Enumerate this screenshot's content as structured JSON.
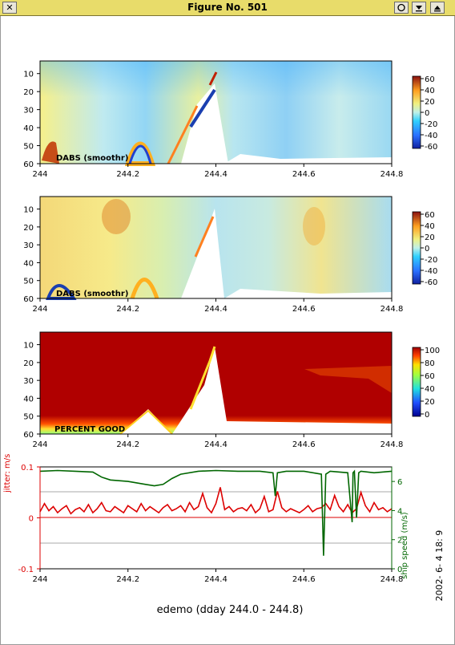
{
  "window": {
    "title": "Figure No. 501",
    "close_glyph": "✕",
    "buttons": [
      "circle-icon",
      "minimize-icon",
      "maximize-icon"
    ]
  },
  "panels": [
    {
      "id": "p1",
      "label": "DABS  (smoothr)",
      "colorbar_ticks": [
        "60",
        "40",
        "20",
        "0",
        "-20",
        "-40",
        "-60"
      ],
      "colorbar": "bwr"
    },
    {
      "id": "p2",
      "label": "DABS  (smoothr)",
      "colorbar_ticks": [
        "60",
        "40",
        "20",
        "0",
        "-20",
        "-40",
        "-60"
      ],
      "colorbar": "bwr"
    },
    {
      "id": "p3",
      "label": "PERCENT GOOD",
      "colorbar_ticks": [
        "100",
        "80",
        "60",
        "40",
        "20",
        "0"
      ],
      "colorbar": "jet"
    }
  ],
  "depth_ticks": [
    "10",
    "20",
    "30",
    "40",
    "50",
    "60"
  ],
  "x_ticks": [
    "244",
    "244.2",
    "244.4",
    "244.6",
    "244.8"
  ],
  "bottom_plot": {
    "left_ylabel": "jitter: m/s",
    "right_ylabel": "ship speed (m/s)",
    "left_ticks": [
      "0.1",
      "0",
      "-0.1"
    ],
    "right_ticks": [
      "6",
      "4",
      "2",
      "0"
    ]
  },
  "footer": {
    "caption": "edemo (dday 244.0 - 244.8)",
    "timestamp": "2002- 6- 4 18: 9"
  },
  "chart_data": [
    {
      "type": "line",
      "title": "",
      "xlabel": "",
      "ylabel": "jitter: m/s",
      "xlim": [
        244.0,
        244.8
      ],
      "ylim": [
        -0.1,
        0.1
      ],
      "series": [
        {
          "name": "",
          "color": "#dd0000",
          "x": [
            244.0,
            244.01,
            244.02,
            244.03,
            244.04,
            244.05,
            244.06,
            244.07,
            244.08,
            244.09,
            244.1,
            244.11,
            244.12,
            244.13,
            244.14,
            244.15,
            244.16,
            244.17,
            244.18,
            244.19,
            244.2,
            244.21,
            244.22,
            244.23,
            244.24,
            244.25,
            244.26,
            244.27,
            244.28,
            244.29,
            244.3,
            244.31,
            244.32,
            244.33,
            244.34,
            244.35,
            244.36,
            244.37,
            244.38,
            244.39,
            244.4,
            244.41,
            244.42,
            244.43,
            244.44,
            244.45,
            244.46,
            244.47,
            244.48,
            244.49,
            244.5,
            244.51,
            244.52,
            244.53,
            244.54,
            244.55,
            244.56,
            244.57,
            244.58,
            244.59,
            244.6,
            244.61,
            244.62,
            244.63,
            244.64,
            244.65,
            244.66,
            244.67,
            244.68,
            244.69,
            244.7,
            244.71,
            244.72,
            244.73,
            244.74,
            244.75,
            244.76,
            244.77,
            244.78,
            244.79,
            244.8
          ],
          "y": [
            0.012,
            0.028,
            0.014,
            0.022,
            0.01,
            0.018,
            0.024,
            0.008,
            0.016,
            0.02,
            0.012,
            0.026,
            0.01,
            0.018,
            0.03,
            0.014,
            0.012,
            0.022,
            0.016,
            0.01,
            0.024,
            0.018,
            0.012,
            0.028,
            0.014,
            0.022,
            0.016,
            0.01,
            0.02,
            0.026,
            0.014,
            0.018,
            0.024,
            0.012,
            0.03,
            0.016,
            0.022,
            0.048,
            0.02,
            0.01,
            0.028,
            0.06,
            0.016,
            0.022,
            0.012,
            0.018,
            0.02,
            0.014,
            0.026,
            0.01,
            0.018,
            0.042,
            0.012,
            0.016,
            0.052,
            0.02,
            0.012,
            0.018,
            0.014,
            0.01,
            0.016,
            0.024,
            0.012,
            0.018,
            0.02,
            0.028,
            0.016,
            0.044,
            0.022,
            0.012,
            0.026,
            0.01,
            0.018,
            0.05,
            0.024,
            0.012,
            0.03,
            0.016,
            0.02,
            0.012,
            0.018
          ]
        }
      ]
    },
    {
      "type": "line",
      "title": "",
      "xlabel": "",
      "ylabel": "ship speed (m/s)",
      "xlim": [
        244.0,
        244.8
      ],
      "ylim": [
        0,
        7
      ],
      "series": [
        {
          "name": "",
          "color": "#006600",
          "x": [
            244.0,
            244.04,
            244.08,
            244.12,
            244.14,
            244.16,
            244.2,
            244.24,
            244.26,
            244.28,
            244.3,
            244.32,
            244.36,
            244.4,
            244.45,
            244.5,
            244.53,
            244.535,
            244.54,
            244.56,
            244.6,
            244.64,
            244.645,
            244.65,
            244.655,
            244.66,
            244.7,
            244.71,
            244.712,
            244.715,
            244.72,
            244.725,
            244.73,
            244.76,
            244.8
          ],
          "y": [
            6.7,
            6.75,
            6.7,
            6.65,
            6.3,
            6.1,
            6.0,
            5.8,
            5.7,
            5.8,
            6.2,
            6.5,
            6.7,
            6.75,
            6.7,
            6.7,
            6.6,
            5.0,
            6.6,
            6.7,
            6.7,
            6.5,
            0.9,
            6.5,
            6.6,
            6.7,
            6.6,
            3.2,
            6.6,
            6.7,
            3.5,
            6.6,
            6.7,
            6.6,
            6.7
          ]
        }
      ]
    }
  ]
}
